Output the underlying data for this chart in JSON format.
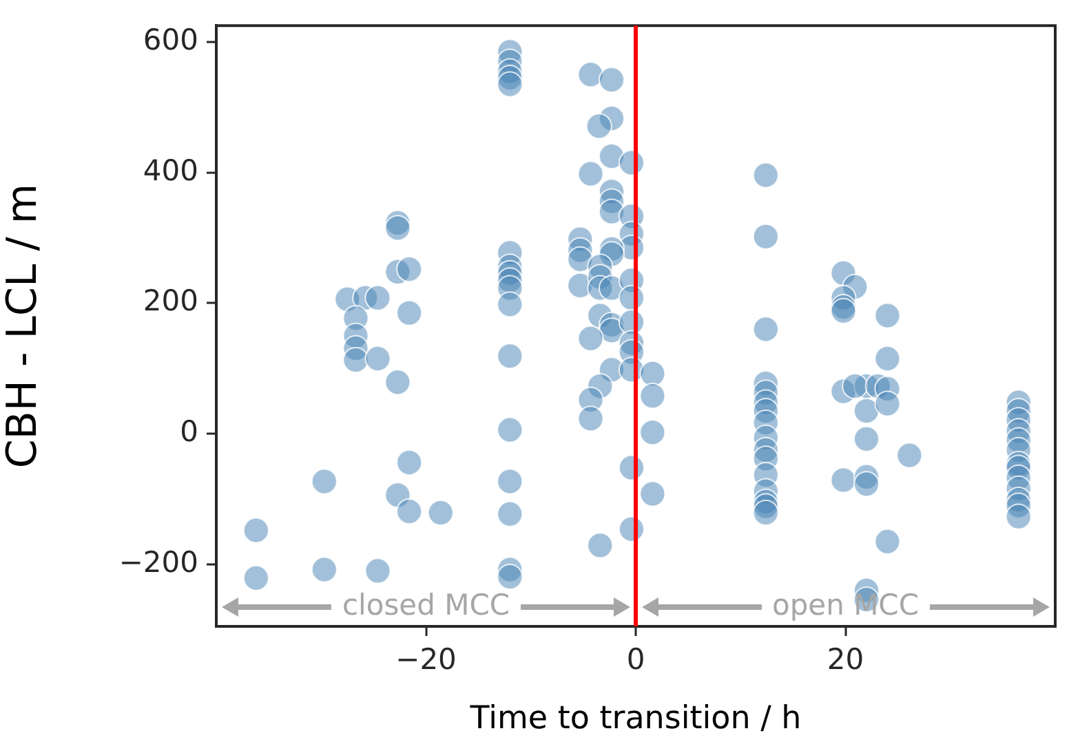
{
  "chart_data": {
    "type": "scatter",
    "xlabel": "Time to transition / h",
    "ylabel": "CBH - LCL / m",
    "xlim": [
      -40,
      40
    ],
    "ylim": [
      -295,
      625
    ],
    "xticks": [
      {
        "value": -20,
        "label": "−20"
      },
      0,
      20
    ],
    "yticks": [
      {
        "value": -200,
        "label": "−200"
      },
      0,
      200,
      400,
      600
    ],
    "grid": false,
    "legend": false,
    "marker": "circle",
    "ref_lines": [
      {
        "axis": "x",
        "value": 0,
        "color": "#ff0000"
      }
    ],
    "annotations": [
      "closed MCC",
      "open MCC"
    ],
    "series": [
      {
        "color": "#4682b4",
        "x": [
          -36.2,
          -36.2,
          -29.7,
          -29.7,
          -24.6,
          -27.5,
          -25.8,
          -24.6,
          -26.7,
          -26.7,
          -26.7,
          -26.7,
          -24.6,
          -22.7,
          -22.7,
          -22.7,
          -21.6,
          -21.6,
          -22.7,
          -21.6,
          -22.7,
          -21.6,
          -18.6,
          -12,
          -12,
          -12,
          -12,
          -12,
          -12,
          -12,
          -12,
          -12,
          -12,
          -12,
          -12,
          -12,
          -12,
          -12,
          -12,
          -12,
          -4.3,
          -2.3,
          -2.3,
          -3.5,
          -2.3,
          -4.3,
          -0.4,
          -2.3,
          -2.3,
          -2.3,
          -0.4,
          -0.4,
          -0.4,
          -5.3,
          -5.3,
          -5.3,
          -5.3,
          -2.3,
          -2.3,
          -3.4,
          -3.4,
          -3.4,
          -2.3,
          -0.4,
          -0.4,
          -3.4,
          -2.3,
          -2.3,
          -0.4,
          -4.3,
          -0.4,
          -0.4,
          -2.3,
          -0.4,
          -3.4,
          -4.3,
          -4.3,
          -0.4,
          -0.4,
          -3.4,
          1.6,
          1.6,
          1.6,
          1.6,
          12.4,
          12.4,
          12.4,
          12.4,
          12.4,
          12.4,
          12.4,
          12.4,
          12.4,
          12.4,
          12.4,
          12.4,
          12.4,
          12.4,
          12.4,
          12.4,
          19.8,
          20.9,
          19.8,
          19.8,
          19.8,
          19.8,
          19.8,
          22,
          22,
          22,
          22,
          22,
          22,
          22,
          20.9,
          23.1,
          24,
          24,
          24,
          24,
          24,
          26.1,
          36.5,
          36.5,
          36.5,
          36.5,
          36.5,
          36.5,
          36.5,
          36.5,
          36.5,
          36.5,
          36.5,
          36.5,
          36.5
        ],
        "values": [
          -148,
          -221,
          -73,
          -208,
          -210,
          206,
          208,
          208,
          177,
          150,
          131,
          113,
          115,
          323,
          315,
          248,
          252,
          185,
          79,
          -44,
          -94,
          -119,
          -121,
          585,
          570,
          555,
          545,
          535,
          277,
          256,
          246,
          235,
          223,
          198,
          119,
          6,
          -73,
          -123,
          -208,
          -219,
          550,
          542,
          483,
          471,
          425,
          398,
          415,
          371,
          356,
          340,
          333,
          306,
          285,
          298,
          281,
          267,
          227,
          283,
          275,
          256,
          240,
          223,
          223,
          235,
          208,
          181,
          167,
          158,
          171,
          146,
          139,
          125,
          98,
          98,
          73,
          52,
          23,
          -52,
          -146,
          -171,
          92,
          58,
          2,
          -92,
          396,
          302,
          160,
          77,
          63,
          48,
          35,
          17,
          -6,
          -25,
          -38,
          -63,
          -88,
          -104,
          -111,
          -121,
          246,
          225,
          208,
          194,
          188,
          65,
          -71,
          73,
          35,
          -8,
          -66,
          -77,
          -240,
          -254,
          73,
          73,
          181,
          115,
          69,
          46,
          -165,
          -33,
          48,
          35,
          21,
          4,
          -10,
          -25,
          -46,
          -52,
          -67,
          -84,
          -101,
          -110,
          -127
        ]
      }
    ]
  }
}
